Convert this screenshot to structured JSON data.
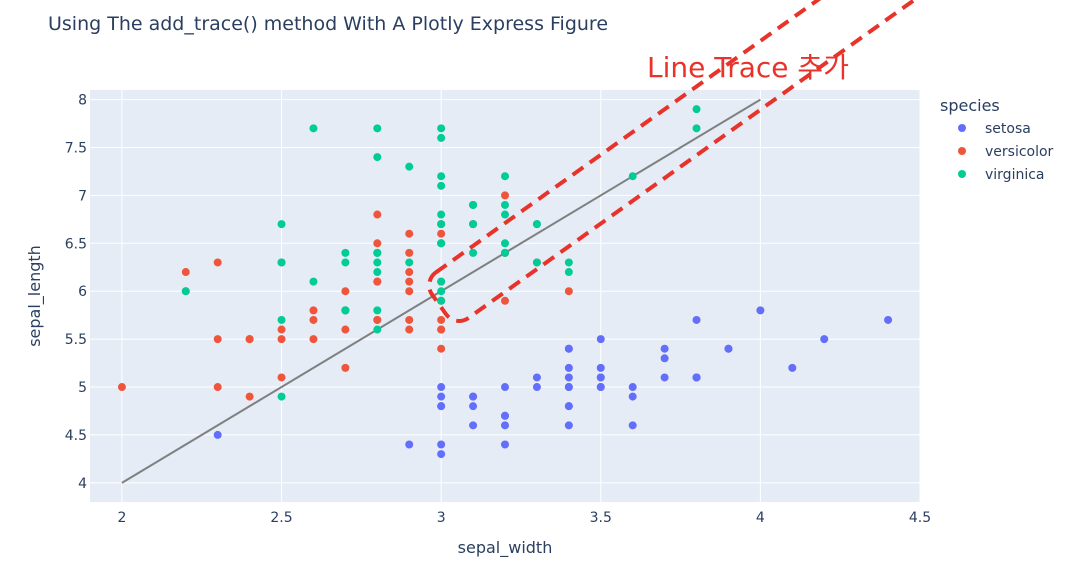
{
  "chart_data": {
    "type": "scatter",
    "title": "Using The add_trace() method With A Plotly Express Figure",
    "xlabel": "sepal_width",
    "ylabel": "sepal_length",
    "xlim": [
      1.9,
      4.5
    ],
    "ylim": [
      3.8,
      8.1
    ],
    "xticks": [
      "2",
      "2.5",
      "3",
      "3.5",
      "4",
      "4.5"
    ],
    "yticks": [
      "4",
      "4.5",
      "5",
      "5.5",
      "6",
      "6.5",
      "7",
      "7.5",
      "8"
    ],
    "grid": true,
    "legend_title": "species",
    "legend_position": "top-right",
    "colors": {
      "setosa": "#636efa",
      "versicolor": "#ef553b",
      "virginica": "#00cc96",
      "line": "#808080",
      "plot_bg": "#e5ecf6",
      "annotation": "#e8332a"
    },
    "series": [
      {
        "name": "setosa",
        "x": [
          3.5,
          3.0,
          3.2,
          3.1,
          3.6,
          3.9,
          3.4,
          3.4,
          2.9,
          3.1,
          3.7,
          3.4,
          3.0,
          3.0,
          4.0,
          4.4,
          3.9,
          3.5,
          3.8,
          3.8,
          3.4,
          3.7,
          3.6,
          3.3,
          3.4,
          3.0,
          3.4,
          3.5,
          3.4,
          3.2,
          3.1,
          3.4,
          4.1,
          4.2,
          3.1,
          3.2,
          3.5,
          3.6,
          3.0,
          3.4,
          3.5,
          2.3,
          3.2,
          3.5,
          3.8,
          3.0,
          3.8,
          3.2,
          3.7,
          3.3
        ],
        "y": [
          5.1,
          4.9,
          4.7,
          4.6,
          5.0,
          5.4,
          4.6,
          5.0,
          4.4,
          4.9,
          5.4,
          4.8,
          4.8,
          4.3,
          5.8,
          5.7,
          5.4,
          5.1,
          5.7,
          5.1,
          5.4,
          5.1,
          4.6,
          5.1,
          4.8,
          5.0,
          5.0,
          5.2,
          5.2,
          4.7,
          4.8,
          5.4,
          5.2,
          5.5,
          4.9,
          5.0,
          5.5,
          4.9,
          4.4,
          5.1,
          5.0,
          4.5,
          4.4,
          5.0,
          5.1,
          4.8,
          5.1,
          4.6,
          5.3,
          5.0
        ]
      },
      {
        "name": "versicolor",
        "x": [
          3.2,
          3.2,
          3.1,
          2.3,
          2.8,
          2.8,
          3.3,
          2.4,
          2.9,
          2.7,
          2.0,
          3.0,
          2.2,
          2.9,
          2.9,
          3.1,
          3.0,
          2.7,
          2.2,
          2.5,
          3.2,
          2.8,
          2.5,
          2.8,
          2.9,
          3.0,
          2.8,
          3.0,
          2.9,
          2.6,
          2.4,
          2.4,
          2.7,
          2.7,
          3.0,
          3.4,
          3.1,
          2.3,
          3.0,
          2.5,
          2.6,
          3.0,
          2.6,
          2.3,
          2.7,
          3.0,
          2.9,
          2.9,
          2.5,
          2.8
        ],
        "y": [
          7.0,
          6.4,
          6.9,
          5.5,
          6.5,
          5.7,
          6.3,
          4.9,
          6.6,
          5.2,
          5.0,
          5.9,
          6.0,
          6.1,
          5.6,
          6.7,
          5.6,
          5.8,
          6.2,
          5.6,
          5.9,
          6.1,
          6.3,
          6.1,
          6.4,
          6.6,
          6.8,
          6.7,
          6.0,
          5.7,
          5.5,
          5.5,
          5.8,
          6.0,
          5.4,
          6.0,
          6.7,
          6.3,
          5.6,
          5.5,
          5.5,
          6.1,
          5.8,
          5.0,
          5.6,
          5.7,
          5.7,
          6.2,
          5.1,
          5.7
        ]
      },
      {
        "name": "virginica",
        "x": [
          3.3,
          2.7,
          3.0,
          2.9,
          3.0,
          3.0,
          2.5,
          2.9,
          2.5,
          3.6,
          3.2,
          2.7,
          3.0,
          2.5,
          2.8,
          3.2,
          3.0,
          3.8,
          2.6,
          2.2,
          3.2,
          2.8,
          2.8,
          2.7,
          3.3,
          3.2,
          2.8,
          3.0,
          2.8,
          3.0,
          2.8,
          3.8,
          2.8,
          2.8,
          2.6,
          3.0,
          3.4,
          3.1,
          3.0,
          3.1,
          3.1,
          3.1,
          2.7,
          3.2,
          3.3,
          3.0,
          2.5,
          3.0,
          3.4,
          3.0
        ],
        "y": [
          6.3,
          5.8,
          7.1,
          6.3,
          6.5,
          7.6,
          4.9,
          7.3,
          6.7,
          7.2,
          6.5,
          6.4,
          6.8,
          5.7,
          5.8,
          6.4,
          6.5,
          7.7,
          7.7,
          6.0,
          6.9,
          5.6,
          7.7,
          6.3,
          6.7,
          7.2,
          6.2,
          6.1,
          6.4,
          7.2,
          7.4,
          7.9,
          6.4,
          6.3,
          6.1,
          7.7,
          6.3,
          6.4,
          6.0,
          6.9,
          6.7,
          6.9,
          5.8,
          6.8,
          6.7,
          6.7,
          6.3,
          6.5,
          6.2,
          5.9
        ]
      }
    ],
    "line_trace": {
      "x": [
        2,
        4
      ],
      "y": [
        4,
        8
      ]
    }
  },
  "annotation": {
    "text": "Line Trace 추가"
  }
}
